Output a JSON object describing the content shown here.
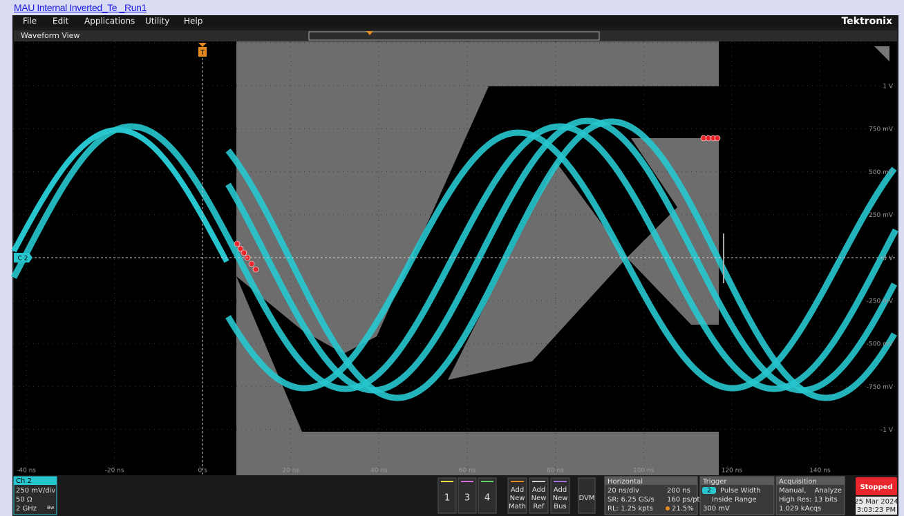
{
  "title": "MAU Internal Inverted_Te _Run1",
  "menu": [
    "File",
    "Edit",
    "Applications",
    "Utility",
    "Help"
  ],
  "logo": "Tektronix",
  "view_title": "Waveform View",
  "trigger_marker": "T",
  "channel_marker": "C 2",
  "y_labels": [
    "1 V",
    "750 mV",
    "500 mV",
    "250 mV",
    "0 V",
    "-250 mV",
    "-500 mV",
    "-750 mV",
    "-1 V"
  ],
  "x_labels": [
    "-40 ns",
    "-20 ns",
    "0 s",
    "20 ns",
    "40 ns",
    "60 ns",
    "80 ns",
    "100 ns",
    "120 ns",
    "140 ns"
  ],
  "channel": {
    "name": "Ch 2",
    "scale": "250 mV/div",
    "impedance": "50 Ω",
    "bandwidth": "2 GHz",
    "bw_icon": "Bw"
  },
  "channel_buttons": [
    "1",
    "3",
    "4"
  ],
  "add_buttons": [
    [
      "Add",
      "New",
      "Math"
    ],
    [
      "Add",
      "New",
      "Ref"
    ],
    [
      "Add",
      "New",
      "Bus"
    ]
  ],
  "dvm": "DVM",
  "horizontal": {
    "title": "Horizontal",
    "scale": "20 ns/div",
    "duration": "200 ns",
    "sample_rate": "SR: 6.25 GS/s",
    "resolution": "160 ps/pt",
    "record_length": "RL: 1.25 kpts",
    "position": "21.5%"
  },
  "trigger": {
    "title": "Trigger",
    "source": "2",
    "type": "Pulse Width",
    "condition": "Inside Range",
    "level": "300 mV"
  },
  "acquisition": {
    "title": "Acquisition",
    "mode": "Manual,",
    "analyze": "Analyze",
    "resolution": "High Res: 13 bits",
    "count": "1.029 kAcqs"
  },
  "status": "Stopped",
  "date": "25 Mar 2024",
  "time": "3:03:23 PM"
}
